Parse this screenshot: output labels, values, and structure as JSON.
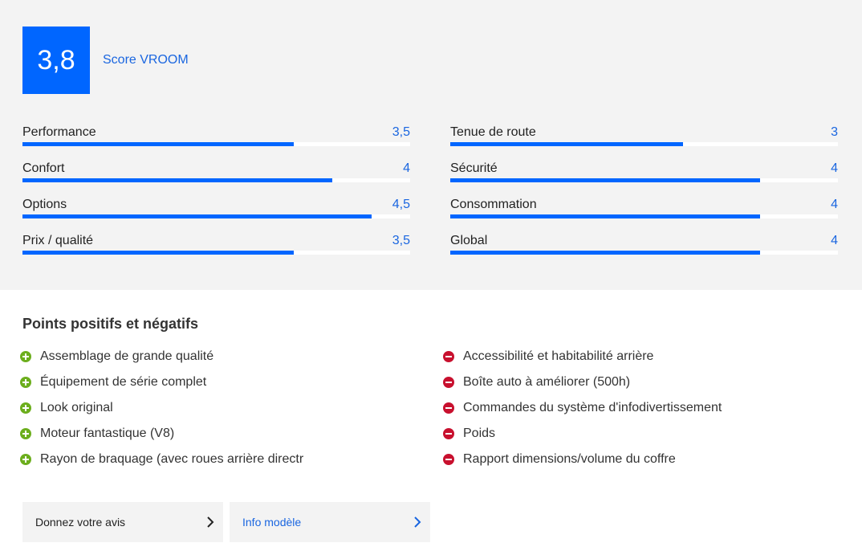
{
  "score": {
    "value": "3,8",
    "label": "Score VROOM",
    "accent": "#0066ff"
  },
  "ratings": {
    "left": [
      {
        "name": "Performance",
        "value": "3,5",
        "level": 3.5
      },
      {
        "name": "Confort",
        "value": "4",
        "level": 4
      },
      {
        "name": "Options",
        "value": "4,5",
        "level": 4.5
      },
      {
        "name": "Prix / qualité",
        "value": "3,5",
        "level": 3.5
      }
    ],
    "right": [
      {
        "name": "Tenue de route",
        "value": "3",
        "level": 3
      },
      {
        "name": "Sécurité",
        "value": "4",
        "level": 4
      },
      {
        "name": "Consommation",
        "value": "4",
        "level": 4
      },
      {
        "name": "Global",
        "value": "4",
        "level": 4
      }
    ],
    "max": 5
  },
  "points": {
    "title": "Points positifs et négatifs",
    "positive": [
      "Assemblage de grande qualité",
      "Équipement de série complet",
      "Look original",
      "Moteur fantastique (V8)",
      "Rayon de braquage (avec roues arrière directr"
    ],
    "negative": [
      "Accessibilité et habitabilité arrière",
      "Boîte auto à améliorer (500h)",
      "Commandes du système d'infodivertissement",
      "Poids",
      "Rapport dimensions/volume du coffre"
    ],
    "positive_color": "#6cae1d",
    "negative_color": "#c8102e"
  },
  "actions": {
    "review_label": "Donnez votre avis",
    "model_label": "Info modèle"
  }
}
